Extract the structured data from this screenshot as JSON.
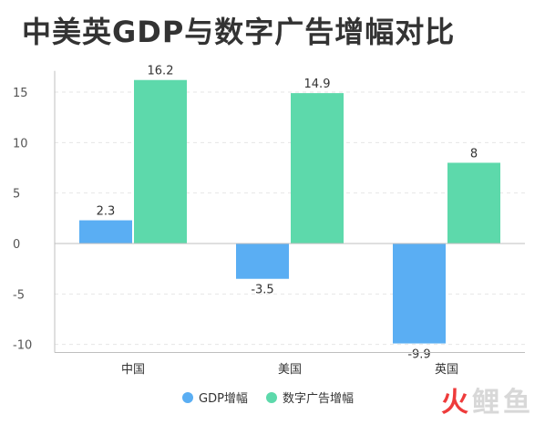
{
  "title": "中美英GDP与数字广告增幅对比",
  "watermark": "火鲤鱼",
  "colors": {
    "gdp": "#5aaef3",
    "digital_ad": "#5dd9ab",
    "axis": "#bfbfbf",
    "grid": "#e6e6e6",
    "text": "#555555"
  },
  "chart_data": {
    "type": "bar",
    "title": "中美英GDP与数字广告增幅对比",
    "categories": [
      "中国",
      "美国",
      "英国"
    ],
    "series": [
      {
        "name": "GDP增幅",
        "values": [
          2.3,
          -3.5,
          -9.9
        ]
      },
      {
        "name": "数字广告增幅",
        "values": [
          16.2,
          14.9,
          8
        ]
      }
    ],
    "data_labels": [
      [
        "2.3",
        "-3.5",
        "-9.9"
      ],
      [
        "16.2",
        "14.9",
        "8"
      ]
    ],
    "yticks": [
      15,
      10,
      5,
      0,
      -5,
      -10
    ],
    "ytick_labels": [
      "15",
      "10",
      "5",
      "0",
      "-5",
      "-10"
    ],
    "ylim": [
      -10.8,
      17.1
    ],
    "grid": true,
    "legend": "bottom-center"
  }
}
